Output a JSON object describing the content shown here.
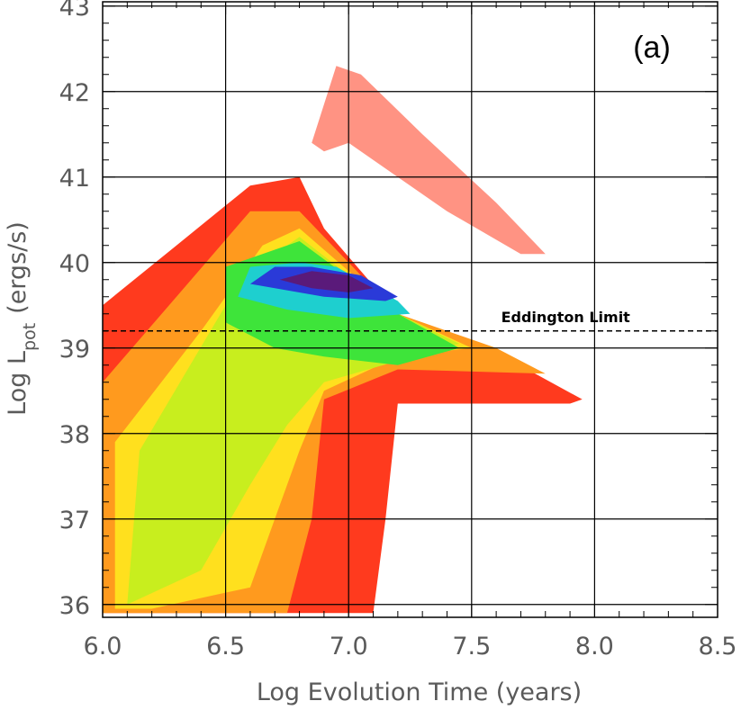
{
  "chart_data": {
    "type": "heatmap",
    "panel_label": "(a)",
    "xlabel": "Log Evolution Time (years)",
    "ylabel_main": "Log L",
    "ylabel_sub": "pot",
    "ylabel_units": "(ergs/s)",
    "xlim": [
      6.0,
      8.5
    ],
    "ylim": [
      35.85,
      43.05
    ],
    "x_ticks": [
      6.0,
      6.5,
      7.0,
      7.5,
      8.0,
      8.5
    ],
    "x_tick_labels": [
      "6.0",
      "6.5",
      "7.0",
      "7.5",
      "8.0",
      "8.5"
    ],
    "y_ticks": [
      36,
      37,
      38,
      39,
      40,
      41,
      42,
      43
    ],
    "y_tick_labels": [
      "36",
      "37",
      "38",
      "39",
      "40",
      "41",
      "42",
      "43"
    ],
    "grid": true,
    "reference_line": {
      "y": 39.2,
      "style": "dashed",
      "label": "Eddington Limit",
      "x_start": 6.0,
      "x_end": 8.5
    },
    "density_color_scale": [
      "#ff3a1e",
      "#ff9a1e",
      "#ffe01e",
      "#c8ee1e",
      "#3ee43a",
      "#1ecfcf",
      "#2a3ad8",
      "#5a1a7a"
    ],
    "density_regions": [
      {
        "level": 1,
        "color": "#ff3a1e",
        "x": [
          6.0,
          6.0,
          6.3,
          6.6,
          6.8,
          6.9,
          7.2,
          7.6,
          7.95,
          7.9,
          7.2,
          7.15,
          7.1,
          6.3
        ],
        "y": [
          35.9,
          39.5,
          40.2,
          40.9,
          41.0,
          40.4,
          39.4,
          38.95,
          38.4,
          38.35,
          38.35,
          37.0,
          35.9,
          35.9
        ]
      },
      {
        "level": 2,
        "color": "#ff9a1e",
        "x": [
          6.0,
          6.0,
          6.3,
          6.6,
          6.8,
          7.2,
          7.6,
          7.8,
          7.2,
          6.9,
          6.85,
          6.75,
          6.1
        ],
        "y": [
          35.9,
          38.6,
          39.6,
          40.6,
          40.6,
          39.4,
          39.0,
          38.7,
          38.75,
          38.4,
          37.0,
          35.9,
          35.9
        ]
      },
      {
        "level": 3,
        "color": "#ffe01e",
        "x": [
          6.05,
          6.05,
          6.4,
          6.65,
          6.8,
          7.2,
          7.5,
          7.2,
          6.9,
          6.8,
          6.7,
          6.6,
          6.2
        ],
        "y": [
          35.95,
          37.9,
          39.2,
          40.2,
          40.4,
          39.4,
          39.0,
          38.9,
          38.5,
          37.8,
          37.0,
          36.2,
          35.95
        ]
      },
      {
        "level": 4,
        "color": "#c8ee1e",
        "x": [
          6.1,
          6.15,
          6.5,
          6.7,
          6.8,
          7.2,
          7.45,
          7.2,
          6.9,
          6.75,
          6.6,
          6.4
        ],
        "y": [
          36.0,
          37.8,
          39.5,
          40.1,
          40.3,
          39.4,
          39.05,
          38.85,
          38.6,
          38.1,
          37.4,
          36.4
        ]
      },
      {
        "level": 5,
        "color": "#3ee43a",
        "x": [
          6.5,
          6.5,
          6.7,
          6.8,
          7.2,
          7.45,
          7.2,
          6.9,
          6.7
        ],
        "y": [
          39.3,
          39.95,
          40.15,
          40.25,
          39.4,
          39.0,
          38.8,
          38.9,
          39.0
        ]
      },
      {
        "level": 6,
        "color": "#1ecfcf",
        "x": [
          6.55,
          6.6,
          6.8,
          6.95,
          7.2,
          7.25,
          7.0,
          6.75
        ],
        "y": [
          39.6,
          39.95,
          40.0,
          39.95,
          39.55,
          39.4,
          39.35,
          39.45
        ]
      },
      {
        "level": 7,
        "color": "#2a3ad8",
        "x": [
          6.6,
          6.7,
          6.85,
          7.05,
          7.2,
          7.15,
          6.9,
          6.7
        ],
        "y": [
          39.75,
          39.95,
          39.95,
          39.85,
          39.6,
          39.55,
          39.6,
          39.7
        ]
      },
      {
        "level": 8,
        "color": "#5a1a7a",
        "x": [
          6.72,
          6.85,
          7.0,
          7.1,
          7.0,
          6.85
        ],
        "y": [
          39.8,
          39.9,
          39.85,
          39.7,
          39.65,
          39.7
        ]
      }
    ],
    "sparse_plume": {
      "color": "#ff3a1e",
      "x": [
        6.85,
        6.95,
        7.05,
        7.3,
        7.6,
        7.8,
        7.7,
        7.4,
        7.2,
        7.0,
        6.9
      ],
      "y": [
        41.4,
        42.3,
        42.2,
        41.5,
        40.7,
        40.1,
        40.1,
        40.6,
        41.0,
        41.4,
        41.3
      ]
    }
  }
}
